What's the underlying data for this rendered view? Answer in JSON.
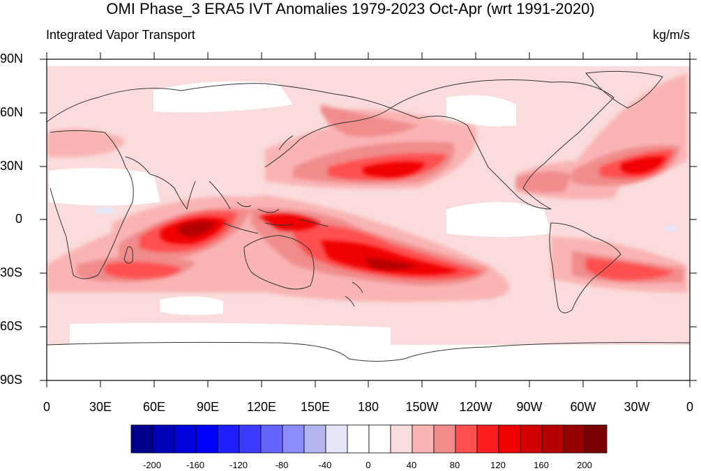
{
  "header": {
    "title": "OMI Phase_3 ERA5 IVT Anomalies 1979-2023 Oct-Apr (wrt 1991-2020)",
    "left_label": "Integrated Vapor Transport",
    "right_label": "kg/m/s"
  },
  "axes": {
    "lat_labels": [
      "90N",
      "60N",
      "30N",
      "0",
      "30S",
      "60S",
      "90S"
    ],
    "lon_labels": [
      "0",
      "30E",
      "60E",
      "90E",
      "120E",
      "150E",
      "180",
      "150W",
      "120W",
      "90W",
      "60W",
      "30W",
      "0"
    ]
  },
  "colorbar": {
    "labels": [
      "-200",
      "-160",
      "-120",
      "-80",
      "-40",
      "0",
      "40",
      "80",
      "120",
      "160",
      "200"
    ],
    "colors": [
      "#00008c",
      "#0000b4",
      "#0000dc",
      "#0000ff",
      "#1e1eff",
      "#3c3cff",
      "#6464ff",
      "#8c8cff",
      "#b4b4f0",
      "#e6e6fa",
      "#ffffff",
      "#ffffff",
      "#fadcdc",
      "#fab4b4",
      "#f08c8c",
      "#ff5050",
      "#ff1e1e",
      "#f00000",
      "#d20000",
      "#b40000",
      "#960000",
      "#780000"
    ]
  }
}
